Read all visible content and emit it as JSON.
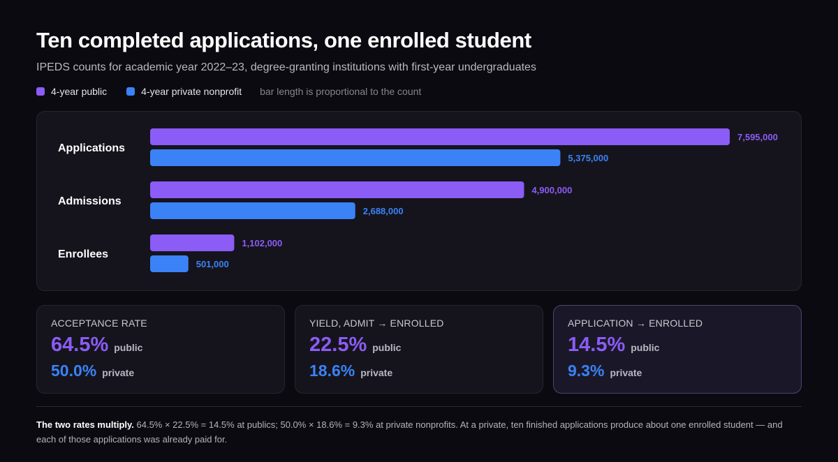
{
  "title": "Ten completed applications, one enrolled student",
  "subtitle": "IPEDS counts for academic year 2022–23, degree-granting institutions with first-year undergraduates",
  "legend": {
    "public_label": "4-year public",
    "private_label": "4-year private nonprofit",
    "note": "bar length is proportional to the count"
  },
  "colors": {
    "public": "#8b5cf6",
    "private": "#3b82f6"
  },
  "chart_data": {
    "type": "bar",
    "orientation": "horizontal",
    "categories": [
      "Applications",
      "Admissions",
      "Enrollees"
    ],
    "series": [
      {
        "name": "4-year public",
        "values": [
          7595000,
          4900000,
          1102000
        ],
        "labels": [
          "7,595,000",
          "4,900,000",
          "1,102,000"
        ]
      },
      {
        "name": "4-year private nonprofit",
        "values": [
          5375000,
          2688000,
          501000
        ],
        "labels": [
          "5,375,000",
          "2,688,000",
          "501,000"
        ]
      }
    ],
    "xlim": [
      0,
      7595000
    ],
    "grid": false
  },
  "cards": [
    {
      "label": "ACCEPTANCE RATE",
      "public_value": "64.5%",
      "private_value": "50.0%",
      "public_tag": "public",
      "private_tag": "private"
    },
    {
      "label": "YIELD, ADMIT → ENROLLED",
      "public_value": "22.5%",
      "private_value": "18.6%",
      "public_tag": "public",
      "private_tag": "private"
    },
    {
      "label": "APPLICATION → ENROLLED",
      "public_value": "14.5%",
      "private_value": "9.3%",
      "public_tag": "public",
      "private_tag": "private"
    }
  ],
  "footnote": {
    "lead": "The two rates multiply.",
    "text": " 64.5% × 22.5% = 14.5% at publics; 50.0% × 18.6% = 9.3% at private nonprofits. At a private, ten finished applications produce about one enrolled student — and each of those applications was already paid for."
  }
}
